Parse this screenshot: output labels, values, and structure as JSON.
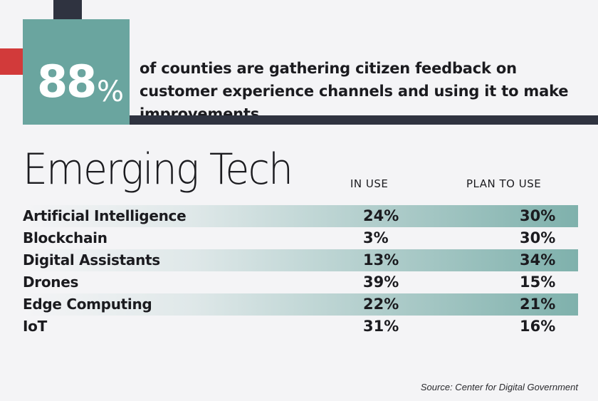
{
  "header": {
    "stat_number": "88",
    "stat_percent": "%",
    "stat_text": "of counties are gathering citizen feedback on customer experience channels and using it to make improvements."
  },
  "section": {
    "title": "Emerging Tech",
    "col_in_use": "IN USE",
    "col_plan": "PLAN TO USE"
  },
  "rows": [
    {
      "label": "Artificial Intelligence",
      "in_use": "24%",
      "plan": "30%"
    },
    {
      "label": "Blockchain",
      "in_use": "3%",
      "plan": "30%"
    },
    {
      "label": "Digital Assistants",
      "in_use": "13%",
      "plan": "34%"
    },
    {
      "label": "Drones",
      "in_use": "39%",
      "plan": "15%"
    },
    {
      "label": "Edge Computing",
      "in_use": "22%",
      "plan": "21%"
    },
    {
      "label": "IoT",
      "in_use": "31%",
      "plan": "16%"
    }
  ],
  "footer": {
    "source": "Source: Center for Digital Government"
  },
  "colors": {
    "teal": "#6aa59f",
    "dark": "#2f3340",
    "red": "#d23a3a",
    "background": "#f4f4f6"
  }
}
